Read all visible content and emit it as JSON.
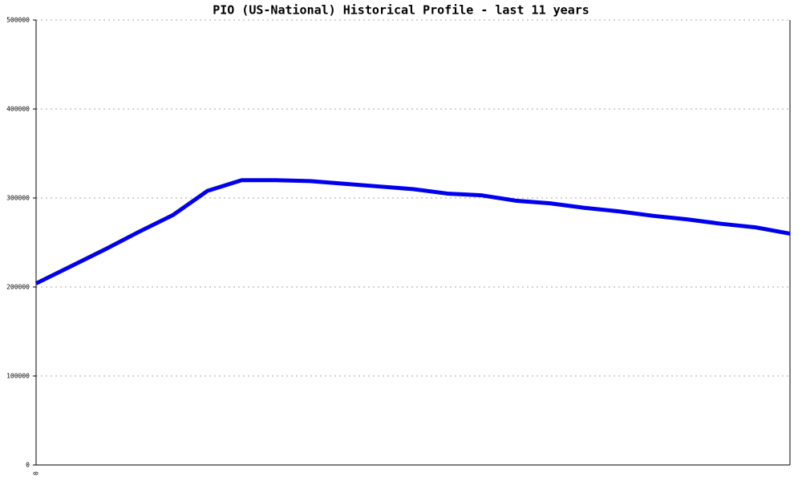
{
  "chart_data": {
    "type": "line",
    "title": "PIO (US-National) Historical Profile - last 11 years",
    "categories": [
      "0",
      null,
      null,
      null,
      null,
      null,
      null,
      null,
      null,
      null,
      null,
      null,
      null,
      null,
      null,
      null,
      null,
      null,
      null,
      null,
      null,
      null,
      null
    ],
    "series": [
      {
        "color": "#0000ee",
        "values": [
          204000,
          223000,
          242000,
          262000,
          281000,
          308000,
          320000,
          320000,
          319000,
          316000,
          313000,
          310000,
          305000,
          303000,
          297000,
          294000,
          289000,
          285000,
          280000,
          276000,
          271000,
          267000,
          260000
        ]
      }
    ],
    "ylim": [
      0,
      500000
    ],
    "yticks": [
      0,
      100000,
      200000,
      300000,
      400000,
      500000
    ],
    "grid": true
  }
}
